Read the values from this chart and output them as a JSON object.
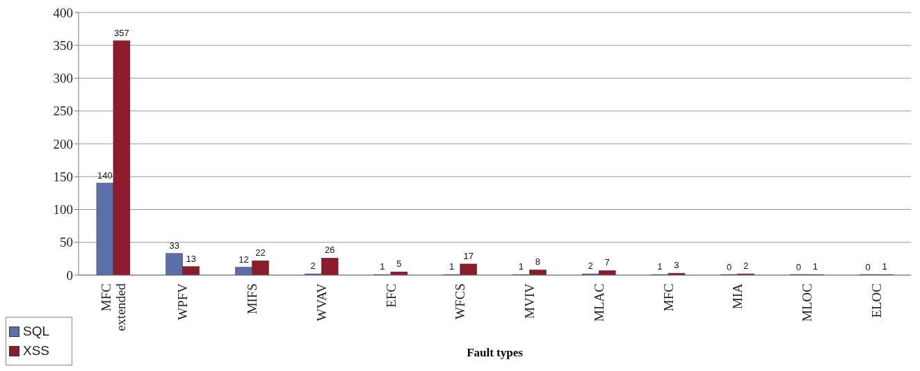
{
  "chart_data": {
    "type": "bar",
    "xlabel": "Fault types",
    "categories": [
      "MFC extended",
      "WPFV",
      "MIFS",
      "WVAV",
      "EFC",
      "WFCS",
      "MVIV",
      "MLAC",
      "MFC",
      "MIA",
      "MLOC",
      "ELOC"
    ],
    "series": [
      {
        "name": "SQL",
        "color": "#5b6ea8",
        "values": [
          140,
          33,
          12,
          2,
          1,
          1,
          1,
          2,
          1,
          0,
          0,
          0
        ]
      },
      {
        "name": "XSS",
        "color": "#8c1c2c",
        "values": [
          357,
          13,
          22,
          26,
          5,
          17,
          8,
          7,
          3,
          2,
          1,
          1
        ]
      }
    ],
    "ylim": [
      0,
      400
    ],
    "yticks": [
      0,
      50,
      100,
      150,
      200,
      250,
      300,
      350,
      400
    ],
    "grid": "y",
    "legend": "bottom left",
    "data_labels": true
  }
}
